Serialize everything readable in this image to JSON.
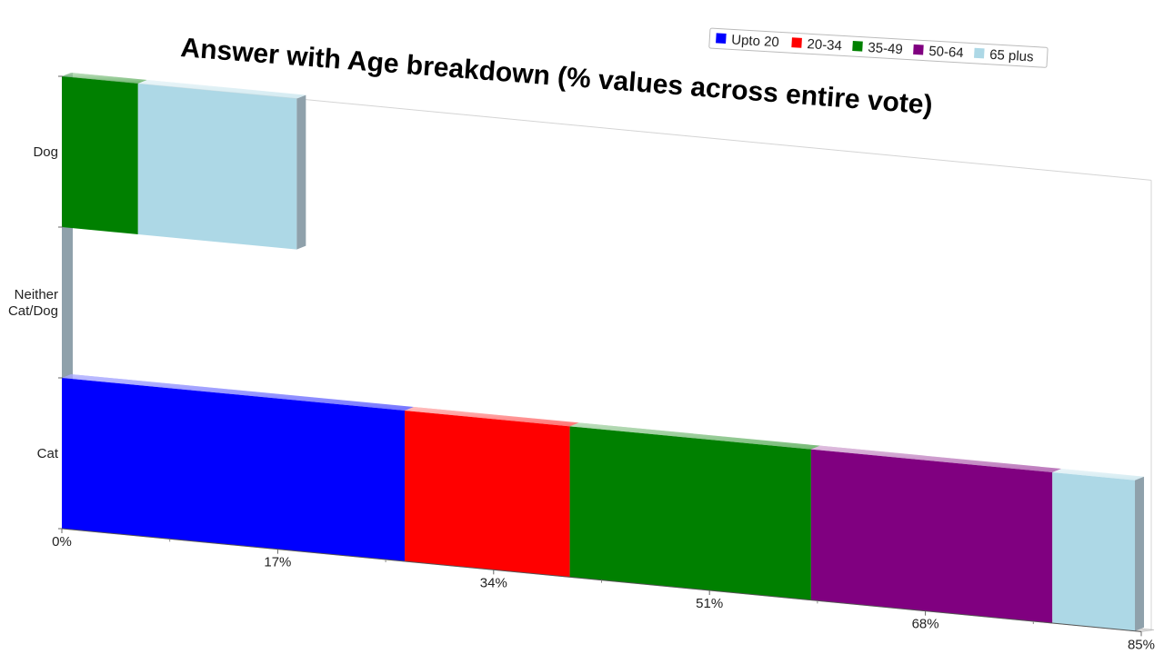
{
  "chart_data": {
    "type": "bar",
    "orientation": "horizontal",
    "stacked": true,
    "title": "Answer with Age breakdown (% values across entire vote)",
    "xlabel": "",
    "ylabel": "",
    "xlim": [
      0,
      85
    ],
    "x_ticks": [
      "0%",
      "17%",
      "34%",
      "51%",
      "68%",
      "85%"
    ],
    "categories": [
      "Dog",
      "Neither\nCat/Dog",
      "Cat"
    ],
    "series": [
      {
        "name": "Upto 20",
        "color": "#0000ff",
        "values": [
          0,
          0,
          27
        ]
      },
      {
        "name": "20-34",
        "color": "#ff0000",
        "values": [
          0,
          0,
          13
        ]
      },
      {
        "name": "35-49",
        "color": "#008000",
        "values": [
          6,
          0,
          19
        ]
      },
      {
        "name": "50-64",
        "color": "#800080",
        "values": [
          0,
          0,
          19
        ]
      },
      {
        "name": "65 plus",
        "color": "#add8e6",
        "values": [
          12.5,
          0,
          6.5
        ]
      }
    ],
    "legend_position": "top-right",
    "grid": false
  }
}
